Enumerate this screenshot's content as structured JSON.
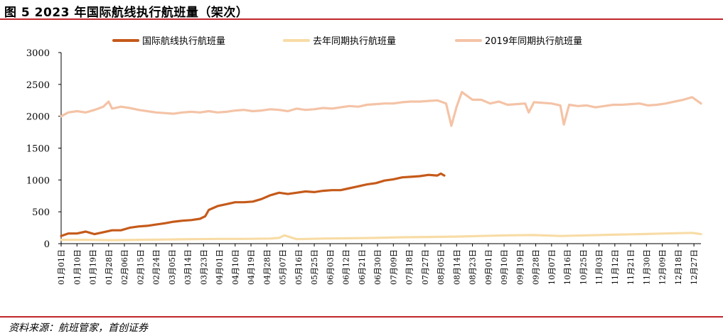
{
  "title": "图 5 2023 年国际航线执行航班量（架次）",
  "source": "资料来源：航班管家，首创证券",
  "colors": {
    "rule": "#c0262a",
    "s2023": "#c55a1a",
    "s2022": "#f8dca6",
    "s2019": "#f4c3a6"
  },
  "chart_data": {
    "type": "line",
    "title": "",
    "xlabel": "",
    "ylabel": "",
    "ylim": [
      0,
      3000
    ],
    "yticks": [
      0,
      500,
      1000,
      1500,
      2000,
      2500,
      3000
    ],
    "ytick_labels": [
      "0",
      "500",
      "1000",
      "1500",
      "2000",
      "2500",
      "3000"
    ],
    "xtick_labels": [
      "01月01日",
      "01月10日",
      "01月19日",
      "01月28日",
      "02月06日",
      "02月15日",
      "02月24日",
      "03月05日",
      "03月14日",
      "03月23日",
      "04月01日",
      "04月10日",
      "04月19日",
      "04月28日",
      "05月07日",
      "05月16日",
      "05月25日",
      "06月03日",
      "06月12日",
      "06月21日",
      "06月30日",
      "07月09日",
      "07月18日",
      "07月27日",
      "08月05日",
      "08月14日",
      "08月23日",
      "09月01日",
      "09月10日",
      "09月19日",
      "09月28日",
      "10月07日",
      "10月16日",
      "10月25日",
      "11月03日",
      "11月12日",
      "11月21日",
      "11月30日",
      "12月09日",
      "12月18日",
      "12月27日"
    ],
    "x_day_of_year": [
      1,
      10,
      19,
      28,
      37,
      46,
      55,
      64,
      73,
      82,
      91,
      100,
      109,
      118,
      127,
      136,
      145,
      154,
      163,
      172,
      181,
      190,
      199,
      208,
      217,
      226,
      235,
      244,
      253,
      262,
      271,
      280,
      289,
      298,
      307,
      316,
      325,
      334,
      343,
      352,
      361
    ],
    "legend_position": "top",
    "grid": false,
    "series": [
      {
        "name": "国际航线执行航班量",
        "x": [
          1,
          5,
          10,
          15,
          20,
          25,
          30,
          35,
          40,
          45,
          50,
          55,
          60,
          65,
          70,
          75,
          80,
          83,
          85,
          90,
          95,
          100,
          105,
          110,
          115,
          120,
          125,
          130,
          135,
          140,
          145,
          150,
          155,
          160,
          165,
          170,
          175,
          180,
          185,
          190,
          195,
          200,
          205,
          210,
          215,
          217,
          219
        ],
        "values": [
          120,
          160,
          160,
          190,
          150,
          180,
          210,
          210,
          250,
          270,
          280,
          300,
          320,
          345,
          360,
          370,
          390,
          430,
          530,
          590,
          620,
          650,
          650,
          660,
          700,
          760,
          800,
          780,
          800,
          820,
          810,
          830,
          840,
          840,
          870,
          900,
          930,
          950,
          990,
          1010,
          1040,
          1050,
          1060,
          1080,
          1070,
          1100,
          1070
        ]
      },
      {
        "name": "去年同期执行航班量",
        "x": [
          1,
          15,
          30,
          45,
          60,
          75,
          90,
          105,
          120,
          125,
          128,
          135,
          150,
          165,
          180,
          195,
          210,
          225,
          240,
          255,
          270,
          285,
          300,
          315,
          330,
          345,
          360,
          365
        ],
        "values": [
          60,
          60,
          55,
          60,
          65,
          70,
          75,
          75,
          80,
          90,
          130,
          70,
          80,
          85,
          90,
          100,
          105,
          110,
          120,
          130,
          135,
          120,
          130,
          140,
          150,
          160,
          170,
          150
        ]
      },
      {
        "name": "2019年同期执行航班量",
        "x": [
          1,
          5,
          10,
          15,
          20,
          25,
          28,
          30,
          35,
          40,
          45,
          50,
          55,
          60,
          65,
          70,
          75,
          80,
          85,
          90,
          95,
          100,
          105,
          110,
          115,
          120,
          125,
          130,
          135,
          140,
          145,
          150,
          155,
          160,
          165,
          170,
          175,
          180,
          185,
          190,
          195,
          200,
          205,
          210,
          215,
          217,
          220,
          223,
          226,
          229,
          235,
          240,
          245,
          250,
          255,
          260,
          265,
          267,
          270,
          275,
          280,
          285,
          287,
          290,
          295,
          300,
          305,
          310,
          315,
          320,
          325,
          330,
          335,
          340,
          345,
          350,
          355,
          360,
          365
        ],
        "values": [
          2000,
          2060,
          2080,
          2060,
          2100,
          2150,
          2230,
          2120,
          2150,
          2130,
          2100,
          2080,
          2060,
          2050,
          2040,
          2060,
          2070,
          2060,
          2080,
          2060,
          2070,
          2090,
          2100,
          2080,
          2090,
          2110,
          2100,
          2080,
          2120,
          2100,
          2110,
          2130,
          2120,
          2140,
          2160,
          2150,
          2180,
          2190,
          2200,
          2200,
          2220,
          2230,
          2230,
          2240,
          2250,
          2230,
          2200,
          1850,
          2150,
          2380,
          2260,
          2260,
          2200,
          2230,
          2180,
          2190,
          2200,
          2060,
          2220,
          2210,
          2200,
          2170,
          1870,
          2180,
          2160,
          2170,
          2140,
          2160,
          2180,
          2180,
          2190,
          2200,
          2170,
          2180,
          2200,
          2230,
          2260,
          2300,
          2200
        ]
      }
    ]
  }
}
